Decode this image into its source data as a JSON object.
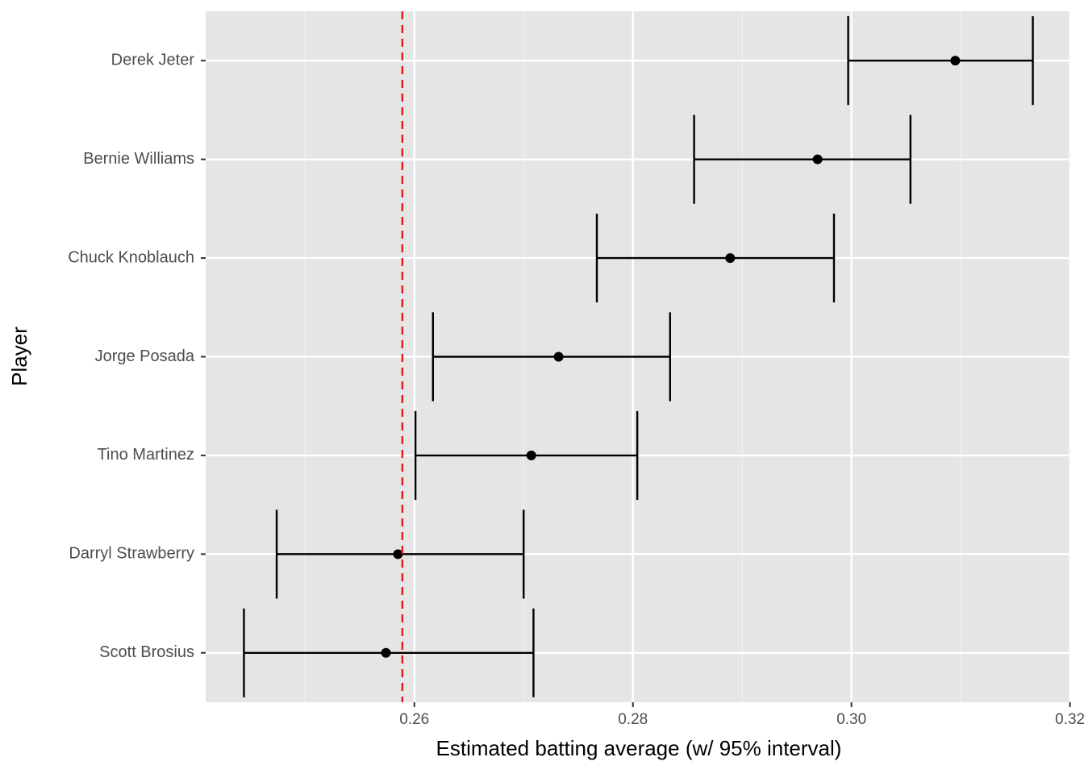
{
  "chart_data": {
    "type": "errorbar",
    "x_label": "Estimated batting average (w/ 95% interval)",
    "y_label": "Player",
    "categories": [
      "Derek Jeter",
      "Bernie Williams",
      "Chuck Knoblauch",
      "Jorge Posada",
      "Tino Martinez",
      "Darryl Strawberry",
      "Scott Brosius"
    ],
    "values": [
      0.3095,
      0.2969,
      0.2889,
      0.2732,
      0.2707,
      0.2585,
      0.2574
    ],
    "lower": [
      0.2997,
      0.2856,
      0.2767,
      0.2617,
      0.2601,
      0.2474,
      0.2444
    ],
    "upper": [
      0.3166,
      0.3054,
      0.2984,
      0.2834,
      0.2804,
      0.27,
      0.2709
    ],
    "color": "#000000",
    "reference_line": 0.2589,
    "reference_color": "#e31a1c",
    "xlim": [
      0.2409,
      0.3201
    ],
    "xticks": [
      0.26,
      0.28,
      {
        "value": 0.3,
        "label": "0.30"
      },
      0.32
    ],
    "grid": true
  }
}
